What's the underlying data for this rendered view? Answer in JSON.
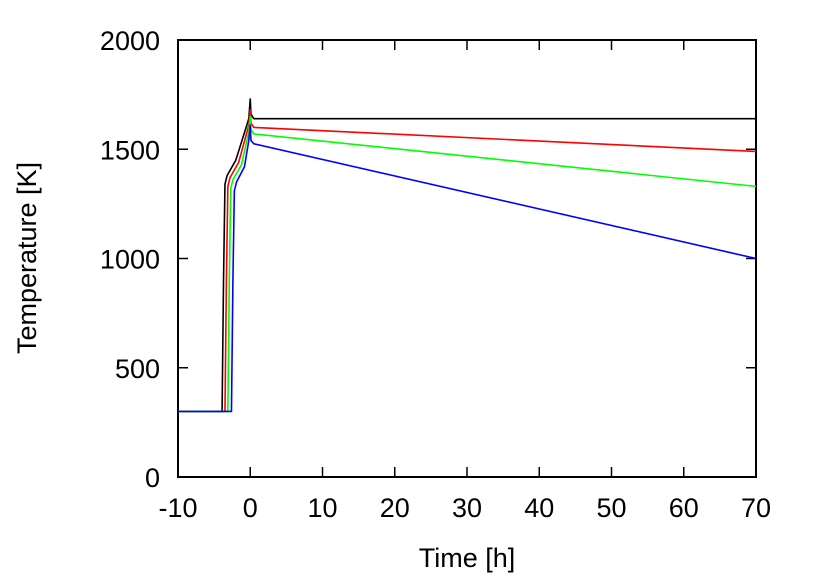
{
  "chart_data": {
    "type": "line",
    "title": "",
    "xlabel": "Time [h]",
    "ylabel": "Temperature [K]",
    "xlim": [
      -10,
      70
    ],
    "ylim": [
      0,
      2000
    ],
    "xticks": [
      -10,
      0,
      10,
      20,
      30,
      40,
      50,
      60,
      70
    ],
    "yticks": [
      0,
      500,
      1000,
      1500,
      2000
    ],
    "xtick_labels": [
      "-10",
      "0",
      "10",
      "20",
      "30",
      "40",
      "50",
      "60",
      "70"
    ],
    "ytick_labels": [
      "0",
      "500",
      "1000",
      "1500",
      "2000"
    ],
    "grid": false,
    "legend": "none",
    "series": [
      {
        "color": "#000000",
        "points": [
          [
            -10,
            300
          ],
          [
            -3.9,
            300
          ],
          [
            -3.7,
            900
          ],
          [
            -3.5,
            1340
          ],
          [
            -3.2,
            1380
          ],
          [
            -2.0,
            1450
          ],
          [
            -0.2,
            1640
          ],
          [
            0,
            1730
          ],
          [
            0.1,
            1660
          ],
          [
            0.5,
            1640
          ],
          [
            70,
            1640
          ]
        ]
      },
      {
        "color": "#ff0000",
        "points": [
          [
            -10,
            300
          ],
          [
            -3.5,
            300
          ],
          [
            -3.3,
            900
          ],
          [
            -3.1,
            1330
          ],
          [
            -2.8,
            1370
          ],
          [
            -1.6,
            1440
          ],
          [
            -0.2,
            1610
          ],
          [
            0,
            1680
          ],
          [
            0.1,
            1620
          ],
          [
            0.5,
            1600
          ],
          [
            70,
            1490
          ]
        ]
      },
      {
        "color": "#00ff00",
        "points": [
          [
            -10,
            300
          ],
          [
            -3.1,
            300
          ],
          [
            -2.9,
            900
          ],
          [
            -2.7,
            1320
          ],
          [
            -2.4,
            1360
          ],
          [
            -1.2,
            1430
          ],
          [
            -0.2,
            1580
          ],
          [
            0,
            1650
          ],
          [
            0.1,
            1590
          ],
          [
            0.5,
            1570
          ],
          [
            70,
            1330
          ]
        ]
      },
      {
        "color": "#0000ff",
        "points": [
          [
            -10,
            300
          ],
          [
            -2.6,
            300
          ],
          [
            -2.4,
            900
          ],
          [
            -2.2,
            1310
          ],
          [
            -1.9,
            1350
          ],
          [
            -0.8,
            1420
          ],
          [
            -0.2,
            1540
          ],
          [
            0,
            1610
          ],
          [
            0.1,
            1540
          ],
          [
            0.5,
            1525
          ],
          [
            70,
            1000
          ]
        ]
      }
    ]
  }
}
